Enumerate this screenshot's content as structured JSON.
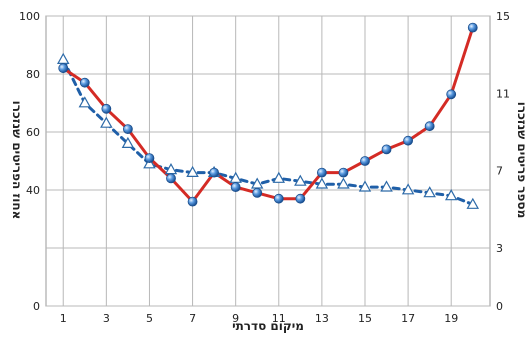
{
  "chart_data": {
    "type": "line",
    "xlabel": "מיקום סדרתי",
    "ylabel": "אחוז הפריטים שנזכרו",
    "y2label": "מספר פריטים שנזכרו",
    "x_ticks": [
      1,
      3,
      5,
      7,
      9,
      11,
      13,
      15,
      17,
      19
    ],
    "ylim": [
      0,
      100
    ],
    "y_ticks": [
      0,
      20,
      40,
      60,
      80,
      100
    ],
    "y_ticks_shown": [
      0,
      40,
      60,
      80,
      100
    ],
    "y2_ticks": [
      0,
      3,
      7,
      11,
      15
    ],
    "xlim": [
      0.2,
      20.8
    ],
    "grid": true,
    "series": [
      {
        "axis": "left",
        "style": "solid",
        "color": "#d42b25",
        "marker": "circle",
        "marker_color": "#3a7dc8",
        "x": [
          1,
          2,
          3,
          4,
          5,
          6,
          7,
          8,
          9,
          10,
          11,
          12,
          13,
          14,
          15,
          16,
          17,
          18,
          19,
          20
        ],
        "values": [
          82,
          77,
          68,
          61,
          51,
          44,
          36,
          46,
          41,
          39,
          37,
          37,
          46,
          46,
          50,
          54,
          57,
          62,
          73,
          96
        ]
      },
      {
        "axis": "left",
        "style": "dashed",
        "color": "#1f5fa8",
        "marker": "triangle",
        "marker_color": "#ffffff",
        "x": [
          1,
          2,
          3,
          4,
          5,
          6,
          7,
          8,
          9,
          10,
          11,
          12,
          13,
          14,
          15,
          16,
          17,
          18,
          19,
          20
        ],
        "values": [
          85,
          70,
          63,
          56,
          49,
          47,
          46,
          46,
          44,
          42,
          44,
          43,
          42,
          42,
          41,
          41,
          40,
          39,
          38,
          35
        ]
      }
    ]
  }
}
